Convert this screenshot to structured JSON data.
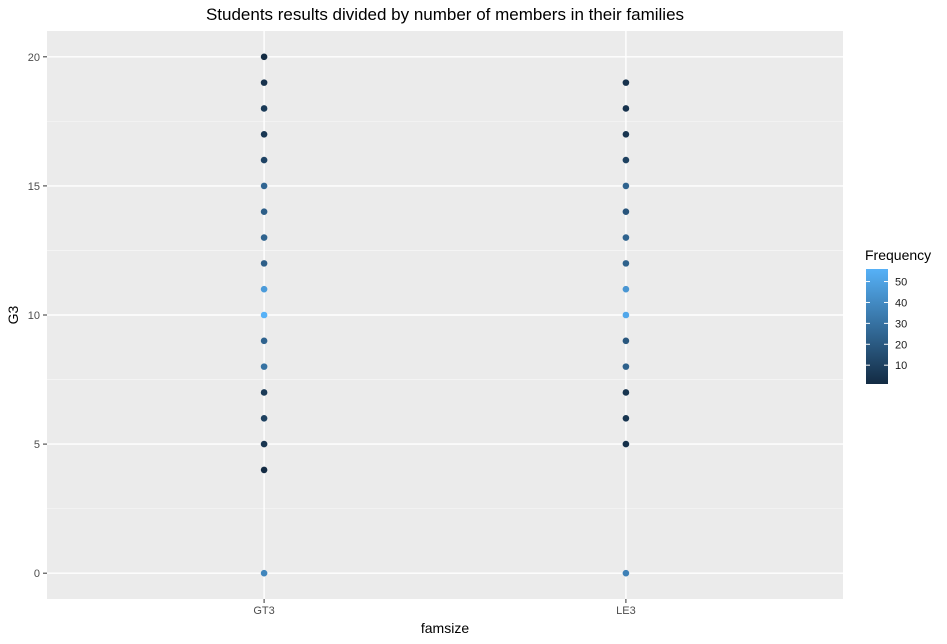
{
  "chart_data": {
    "type": "scatter",
    "title": "Students results divided by number of members in their families",
    "xlabel": "famsize",
    "ylabel": "G3",
    "categories": [
      "GT3",
      "LE3"
    ],
    "ylim": [
      -1,
      21
    ],
    "yticks": [
      0,
      5,
      10,
      15,
      20
    ],
    "grid": true,
    "legend": {
      "title": "Frequency",
      "placement": "right",
      "range": [
        1,
        56
      ],
      "ticks": [
        10,
        20,
        30,
        40,
        50
      ],
      "colors": {
        "low": "#132B43",
        "high": "#56B1F7"
      }
    },
    "series": [
      {
        "category": "GT3",
        "points": [
          {
            "y": 0,
            "frequency": 38
          },
          {
            "y": 4,
            "frequency": 1
          },
          {
            "y": 5,
            "frequency": 5
          },
          {
            "y": 6,
            "frequency": 10
          },
          {
            "y": 7,
            "frequency": 7
          },
          {
            "y": 8,
            "frequency": 30
          },
          {
            "y": 9,
            "frequency": 24
          },
          {
            "y": 10,
            "frequency": 56
          },
          {
            "y": 11,
            "frequency": 47
          },
          {
            "y": 12,
            "frequency": 22
          },
          {
            "y": 13,
            "frequency": 24
          },
          {
            "y": 14,
            "frequency": 22
          },
          {
            "y": 15,
            "frequency": 25
          },
          {
            "y": 16,
            "frequency": 11
          },
          {
            "y": 17,
            "frequency": 6
          },
          {
            "y": 18,
            "frequency": 7
          },
          {
            "y": 19,
            "frequency": 4
          },
          {
            "y": 20,
            "frequency": 1
          }
        ]
      },
      {
        "category": "LE3",
        "points": [
          {
            "y": 0,
            "frequency": 36
          },
          {
            "y": 5,
            "frequency": 3
          },
          {
            "y": 6,
            "frequency": 5
          },
          {
            "y": 7,
            "frequency": 5
          },
          {
            "y": 8,
            "frequency": 23
          },
          {
            "y": 9,
            "frequency": 19
          },
          {
            "y": 10,
            "frequency": 52
          },
          {
            "y": 11,
            "frequency": 45
          },
          {
            "y": 12,
            "frequency": 23
          },
          {
            "y": 13,
            "frequency": 24
          },
          {
            "y": 14,
            "frequency": 18
          },
          {
            "y": 15,
            "frequency": 24
          },
          {
            "y": 16,
            "frequency": 10
          },
          {
            "y": 17,
            "frequency": 5
          },
          {
            "y": 18,
            "frequency": 4
          },
          {
            "y": 19,
            "frequency": 4
          }
        ]
      }
    ]
  }
}
